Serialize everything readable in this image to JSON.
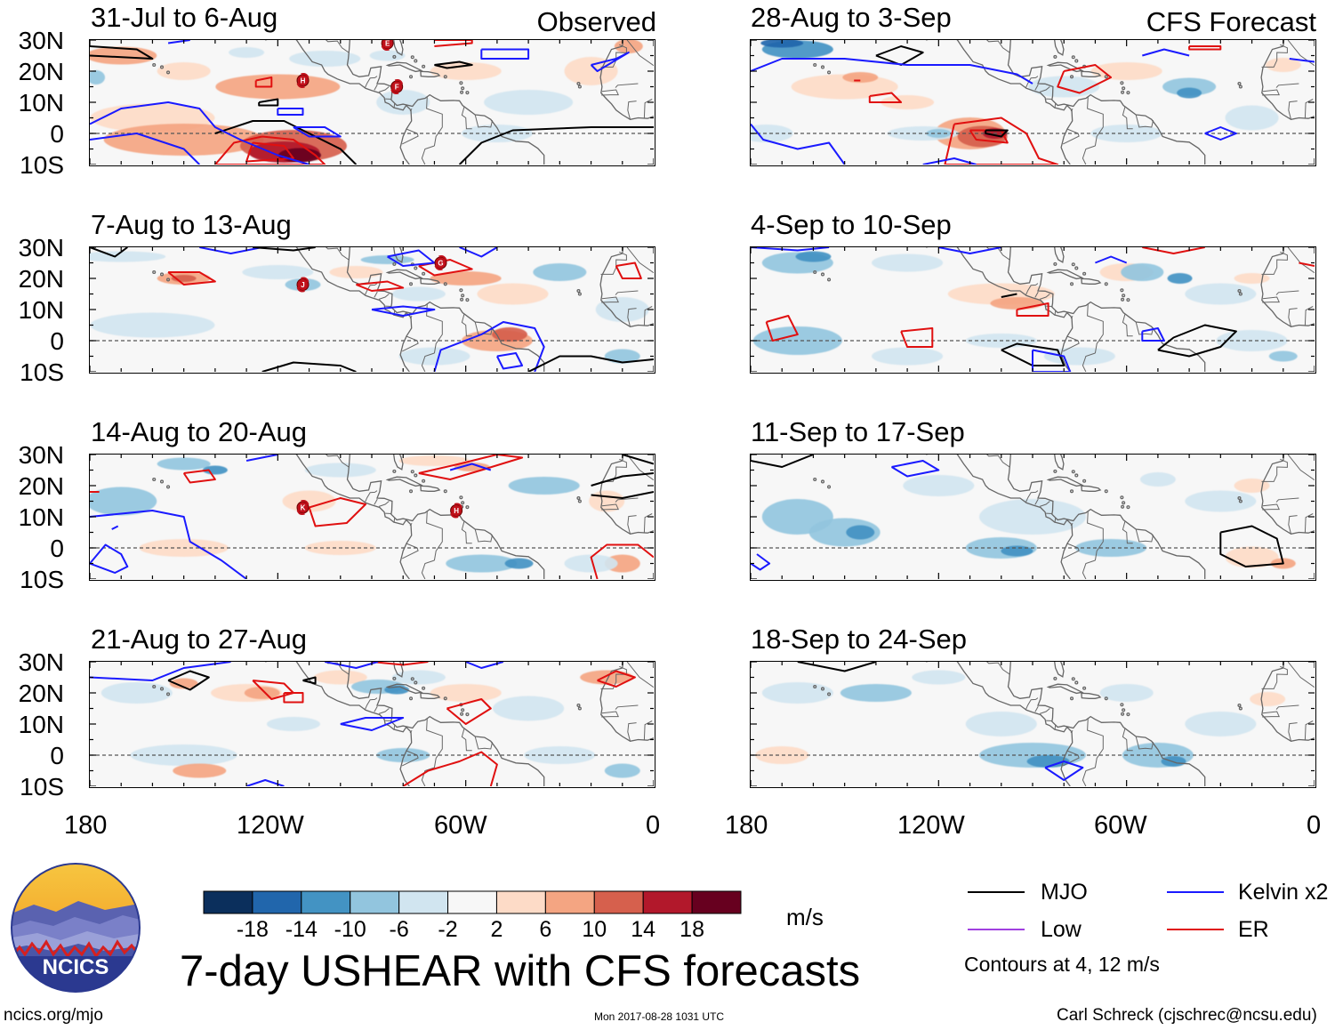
{
  "labels": {
    "observed": "Observed",
    "forecast": "CFS Forecast"
  },
  "panels_left": [
    {
      "title": "31-Jul to 6-Aug"
    },
    {
      "title": "7-Aug to 13-Aug"
    },
    {
      "title": "14-Aug to 20-Aug"
    },
    {
      "title": "21-Aug to 27-Aug"
    }
  ],
  "panels_right": [
    {
      "title": "28-Aug to 3-Sep"
    },
    {
      "title": "4-Sep to 10-Sep"
    },
    {
      "title": "11-Sep to 17-Sep"
    },
    {
      "title": "18-Sep to 24-Sep"
    }
  ],
  "lat_ticks": [
    "30N",
    "20N",
    "10N",
    "0",
    "10S"
  ],
  "lon_ticks": [
    "180",
    "120W",
    "60W",
    "0"
  ],
  "colorbar": {
    "ticks": [
      "-18",
      "-14",
      "-10",
      "-6",
      "-2",
      "2",
      "6",
      "10",
      "14",
      "18"
    ],
    "colors": [
      "#0b2f5c",
      "#2166ac",
      "#4393c3",
      "#92c5de",
      "#d1e5f0",
      "#f7f7f7",
      "#fddbc7",
      "#f4a582",
      "#d6604d",
      "#b2182b",
      "#67001f"
    ],
    "unit": "m/s"
  },
  "legend": {
    "mjo": "MJO",
    "kelvin": "Kelvin x2",
    "low": "Low",
    "er": "ER",
    "contours_note": "Contours at 4, 12 m/s",
    "colors": {
      "mjo": "#000000",
      "kelvin": "#1a1aff",
      "low": "#a040e0",
      "er": "#e01010"
    }
  },
  "storm_markers": [
    {
      "panel": 0,
      "letter": "E"
    },
    {
      "panel": 0,
      "letter": "H"
    },
    {
      "panel": 0,
      "letter": "F"
    },
    {
      "panel": 1,
      "letter": "G"
    },
    {
      "panel": 1,
      "letter": "J"
    },
    {
      "panel": 2,
      "letter": "K"
    },
    {
      "panel": 2,
      "letter": "H"
    }
  ],
  "logo": {
    "text": "NCICS"
  },
  "main_title": "7-day USHEAR with CFS forecasts",
  "footer": {
    "url": "ncics.org/mjo",
    "timestamp": "Mon 2017-08-28 1031 UTC",
    "credit": "Carl Schreck (cjschrec@ncsu.edu)"
  }
}
